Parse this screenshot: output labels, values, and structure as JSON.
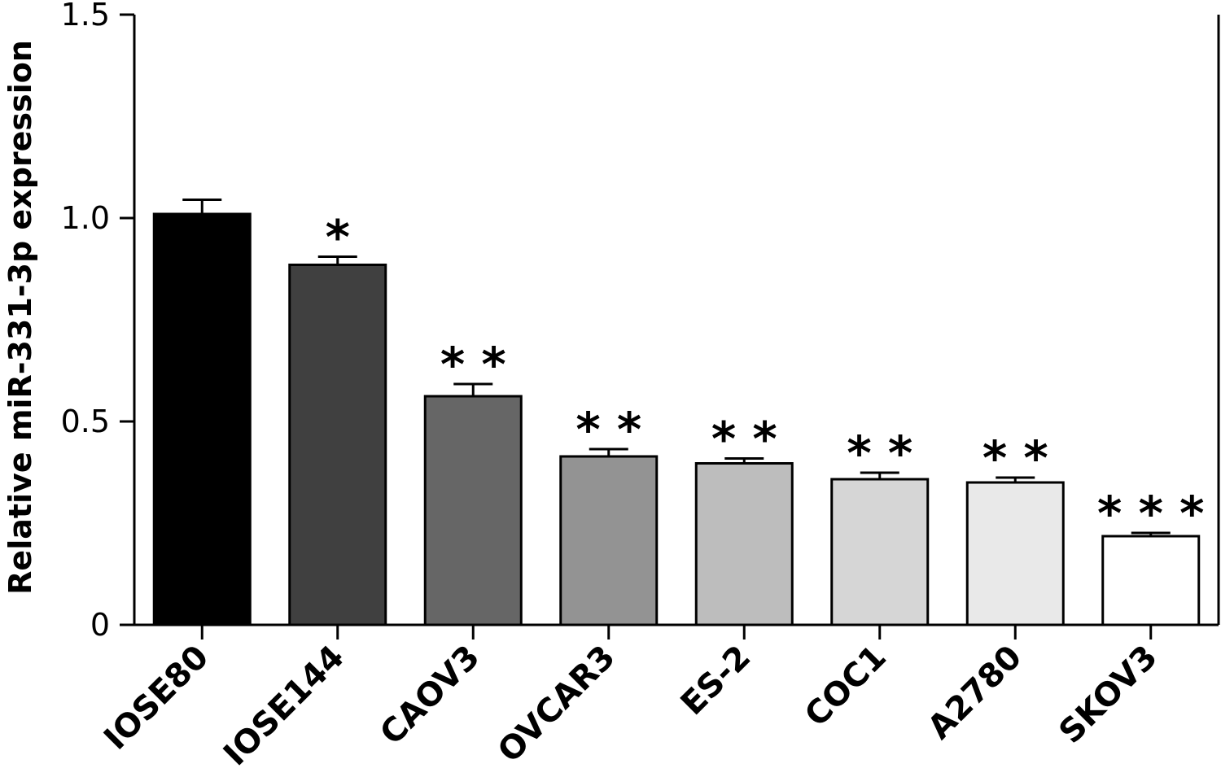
{
  "chart_data": {
    "type": "bar",
    "title": "",
    "xlabel": "",
    "ylabel": "Relative miR-331-3p expression",
    "ylim": [
      0,
      1.5
    ],
    "yticks": [
      0,
      0.5,
      1.0,
      1.5
    ],
    "ytick_labels": [
      "0",
      "0.5",
      "1.0",
      "1.5"
    ],
    "grid": false,
    "categories": [
      "IOSE80",
      "IOSE144",
      "CAOV3",
      "OVCAR3",
      "ES-2",
      "COC1",
      "A2780",
      "SKOV3"
    ],
    "values": [
      1.01,
      0.885,
      0.562,
      0.414,
      0.397,
      0.358,
      0.35,
      0.218
    ],
    "errors": [
      0.035,
      0.02,
      0.03,
      0.018,
      0.012,
      0.016,
      0.012,
      0.008
    ],
    "significance": [
      "",
      "*",
      "* *",
      "* *",
      "* *",
      "* *",
      "* *",
      "* * *"
    ],
    "colors": [
      "#000000",
      "#404040",
      "#666666",
      "#939393",
      "#bdbdbd",
      "#d6d6d6",
      "#e9e9e9",
      "#ffffff"
    ]
  }
}
